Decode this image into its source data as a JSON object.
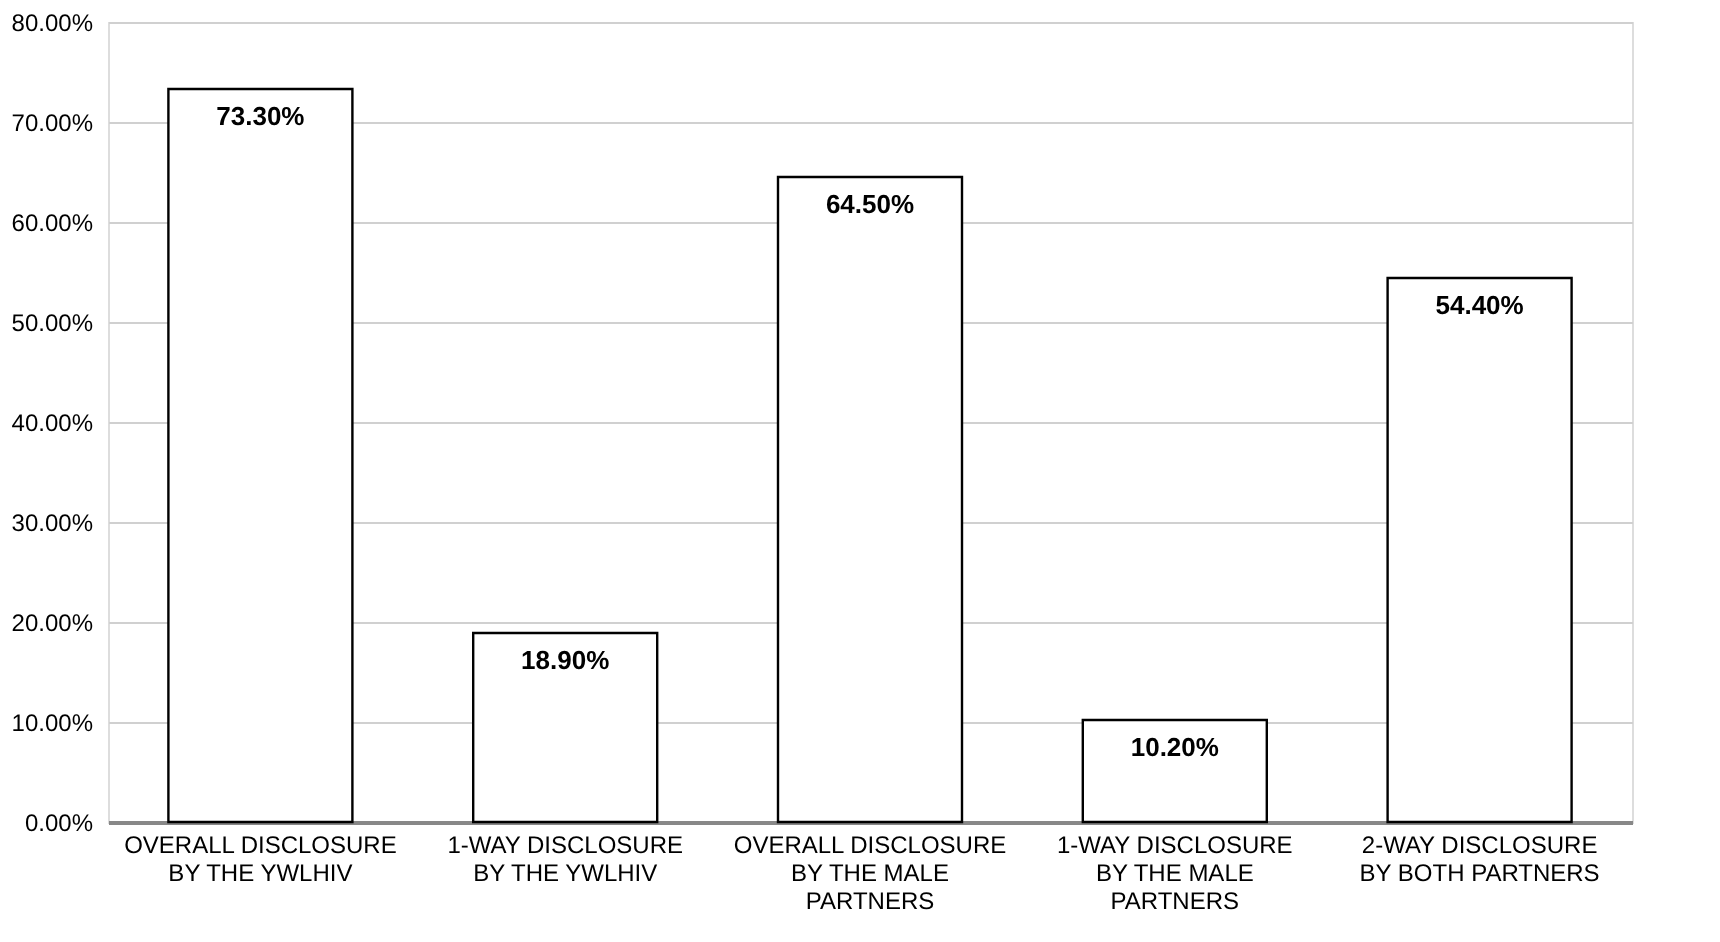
{
  "chart_data": {
    "type": "bar",
    "categories": [
      "OVERALL DISCLOSURE BY THE YWLHIV",
      "1-WAY DISCLOSURE BY THE YWLHIV",
      "OVERALL DISCLOSURE BY THE MALE PARTNERS",
      "1-WAY DISCLOSURE BY THE MALE PARTNERS",
      "2-WAY DISCLOSURE BY BOTH PARTNERS"
    ],
    "values": [
      73.3,
      18.9,
      64.5,
      10.2,
      54.4
    ],
    "value_labels": [
      "73.30%",
      "18.90%",
      "64.50%",
      "10.20%",
      "54.40%"
    ],
    "color": "#ffffff",
    "ylim": [
      0,
      80
    ],
    "yticks": [
      {
        "value": 0,
        "label": "0.00%"
      },
      {
        "value": 10,
        "label": "10.00%"
      },
      {
        "value": 20,
        "label": "20.00%"
      },
      {
        "value": 30,
        "label": "30.00%"
      },
      {
        "value": 40,
        "label": "40.00%"
      },
      {
        "value": 50,
        "label": "50.00%"
      },
      {
        "value": 60,
        "label": "60.00%"
      },
      {
        "value": 70,
        "label": "70.00%"
      },
      {
        "value": 80,
        "label": "80.00%"
      }
    ],
    "grid": "y"
  }
}
